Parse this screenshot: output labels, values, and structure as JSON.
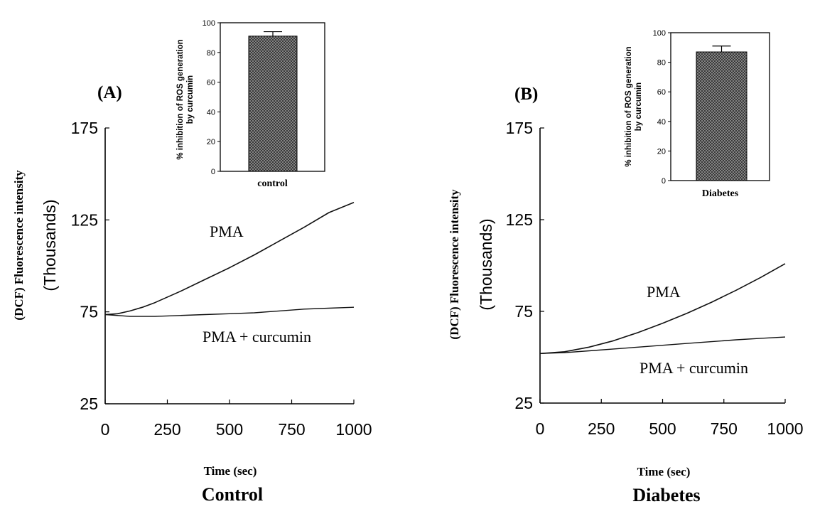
{
  "chart_data": [
    {
      "panel_label": "(A)",
      "type": "line",
      "title": "Control",
      "xlabel": "Time (sec)",
      "ylabel_line1": "(DCF) Fluorescence intensity",
      "ylabel_line2": "(Thousands)",
      "xlim": [
        0,
        1000
      ],
      "ylim": [
        25,
        175
      ],
      "xticks": [
        0,
        250,
        500,
        750,
        1000
      ],
      "yticks": [
        25,
        75,
        125,
        175
      ],
      "series": [
        {
          "name": "PMA",
          "x": [
            0,
            50,
            100,
            150,
            200,
            300,
            400,
            500,
            600,
            700,
            800,
            900,
            1000
          ],
          "y": [
            73.5,
            74,
            75.5,
            77.5,
            80,
            86,
            92.5,
            99,
            106,
            113.5,
            121,
            129,
            134.5
          ]
        },
        {
          "name": "PMA + curcumin",
          "x": [
            0,
            100,
            200,
            300,
            400,
            500,
            600,
            700,
            800,
            900,
            1000
          ],
          "y": [
            73.5,
            72.5,
            72.5,
            73,
            73.5,
            74,
            74.5,
            75.5,
            76.5,
            77,
            77.5
          ]
        }
      ],
      "inset": {
        "type": "bar",
        "categories": [
          "control"
        ],
        "values": [
          91
        ],
        "error": [
          3
        ],
        "ylabel_line1": "% inhibition of ROS generation",
        "ylabel_line2": "by curcumin",
        "ylim": [
          0,
          100
        ],
        "yticks": [
          0,
          20,
          40,
          60,
          80,
          100
        ]
      }
    },
    {
      "panel_label": "(B)",
      "type": "line",
      "title": "Diabetes",
      "xlabel": "Time (sec)",
      "ylabel_line1": "(DCF) Fluorescence intensity",
      "ylabel_line2": "(Thousands)",
      "xlim": [
        0,
        1000
      ],
      "ylim": [
        25,
        175
      ],
      "xticks": [
        0,
        250,
        500,
        750,
        1000
      ],
      "yticks": [
        25,
        75,
        125,
        175
      ],
      "series": [
        {
          "name": "PMA",
          "x": [
            0,
            100,
            200,
            300,
            400,
            500,
            600,
            700,
            800,
            900,
            1000
          ],
          "y": [
            52,
            53,
            55.5,
            59,
            63.5,
            68.5,
            74,
            80,
            86.5,
            93.5,
            101
          ]
        },
        {
          "name": "PMA + curcumin",
          "x": [
            0,
            100,
            200,
            300,
            400,
            500,
            600,
            700,
            800,
            900,
            1000
          ],
          "y": [
            52,
            52.5,
            53.5,
            54.5,
            55.5,
            56.5,
            57.5,
            58.5,
            59.5,
            60.3,
            61
          ]
        }
      ],
      "inset": {
        "type": "bar",
        "categories": [
          "Diabetes"
        ],
        "values": [
          87
        ],
        "error": [
          4
        ],
        "ylabel_line1": "% inhibition of ROS generation",
        "ylabel_line2": "by curcumin",
        "ylim": [
          0,
          100
        ],
        "yticks": [
          0,
          20,
          40,
          60,
          80,
          100
        ]
      }
    }
  ]
}
